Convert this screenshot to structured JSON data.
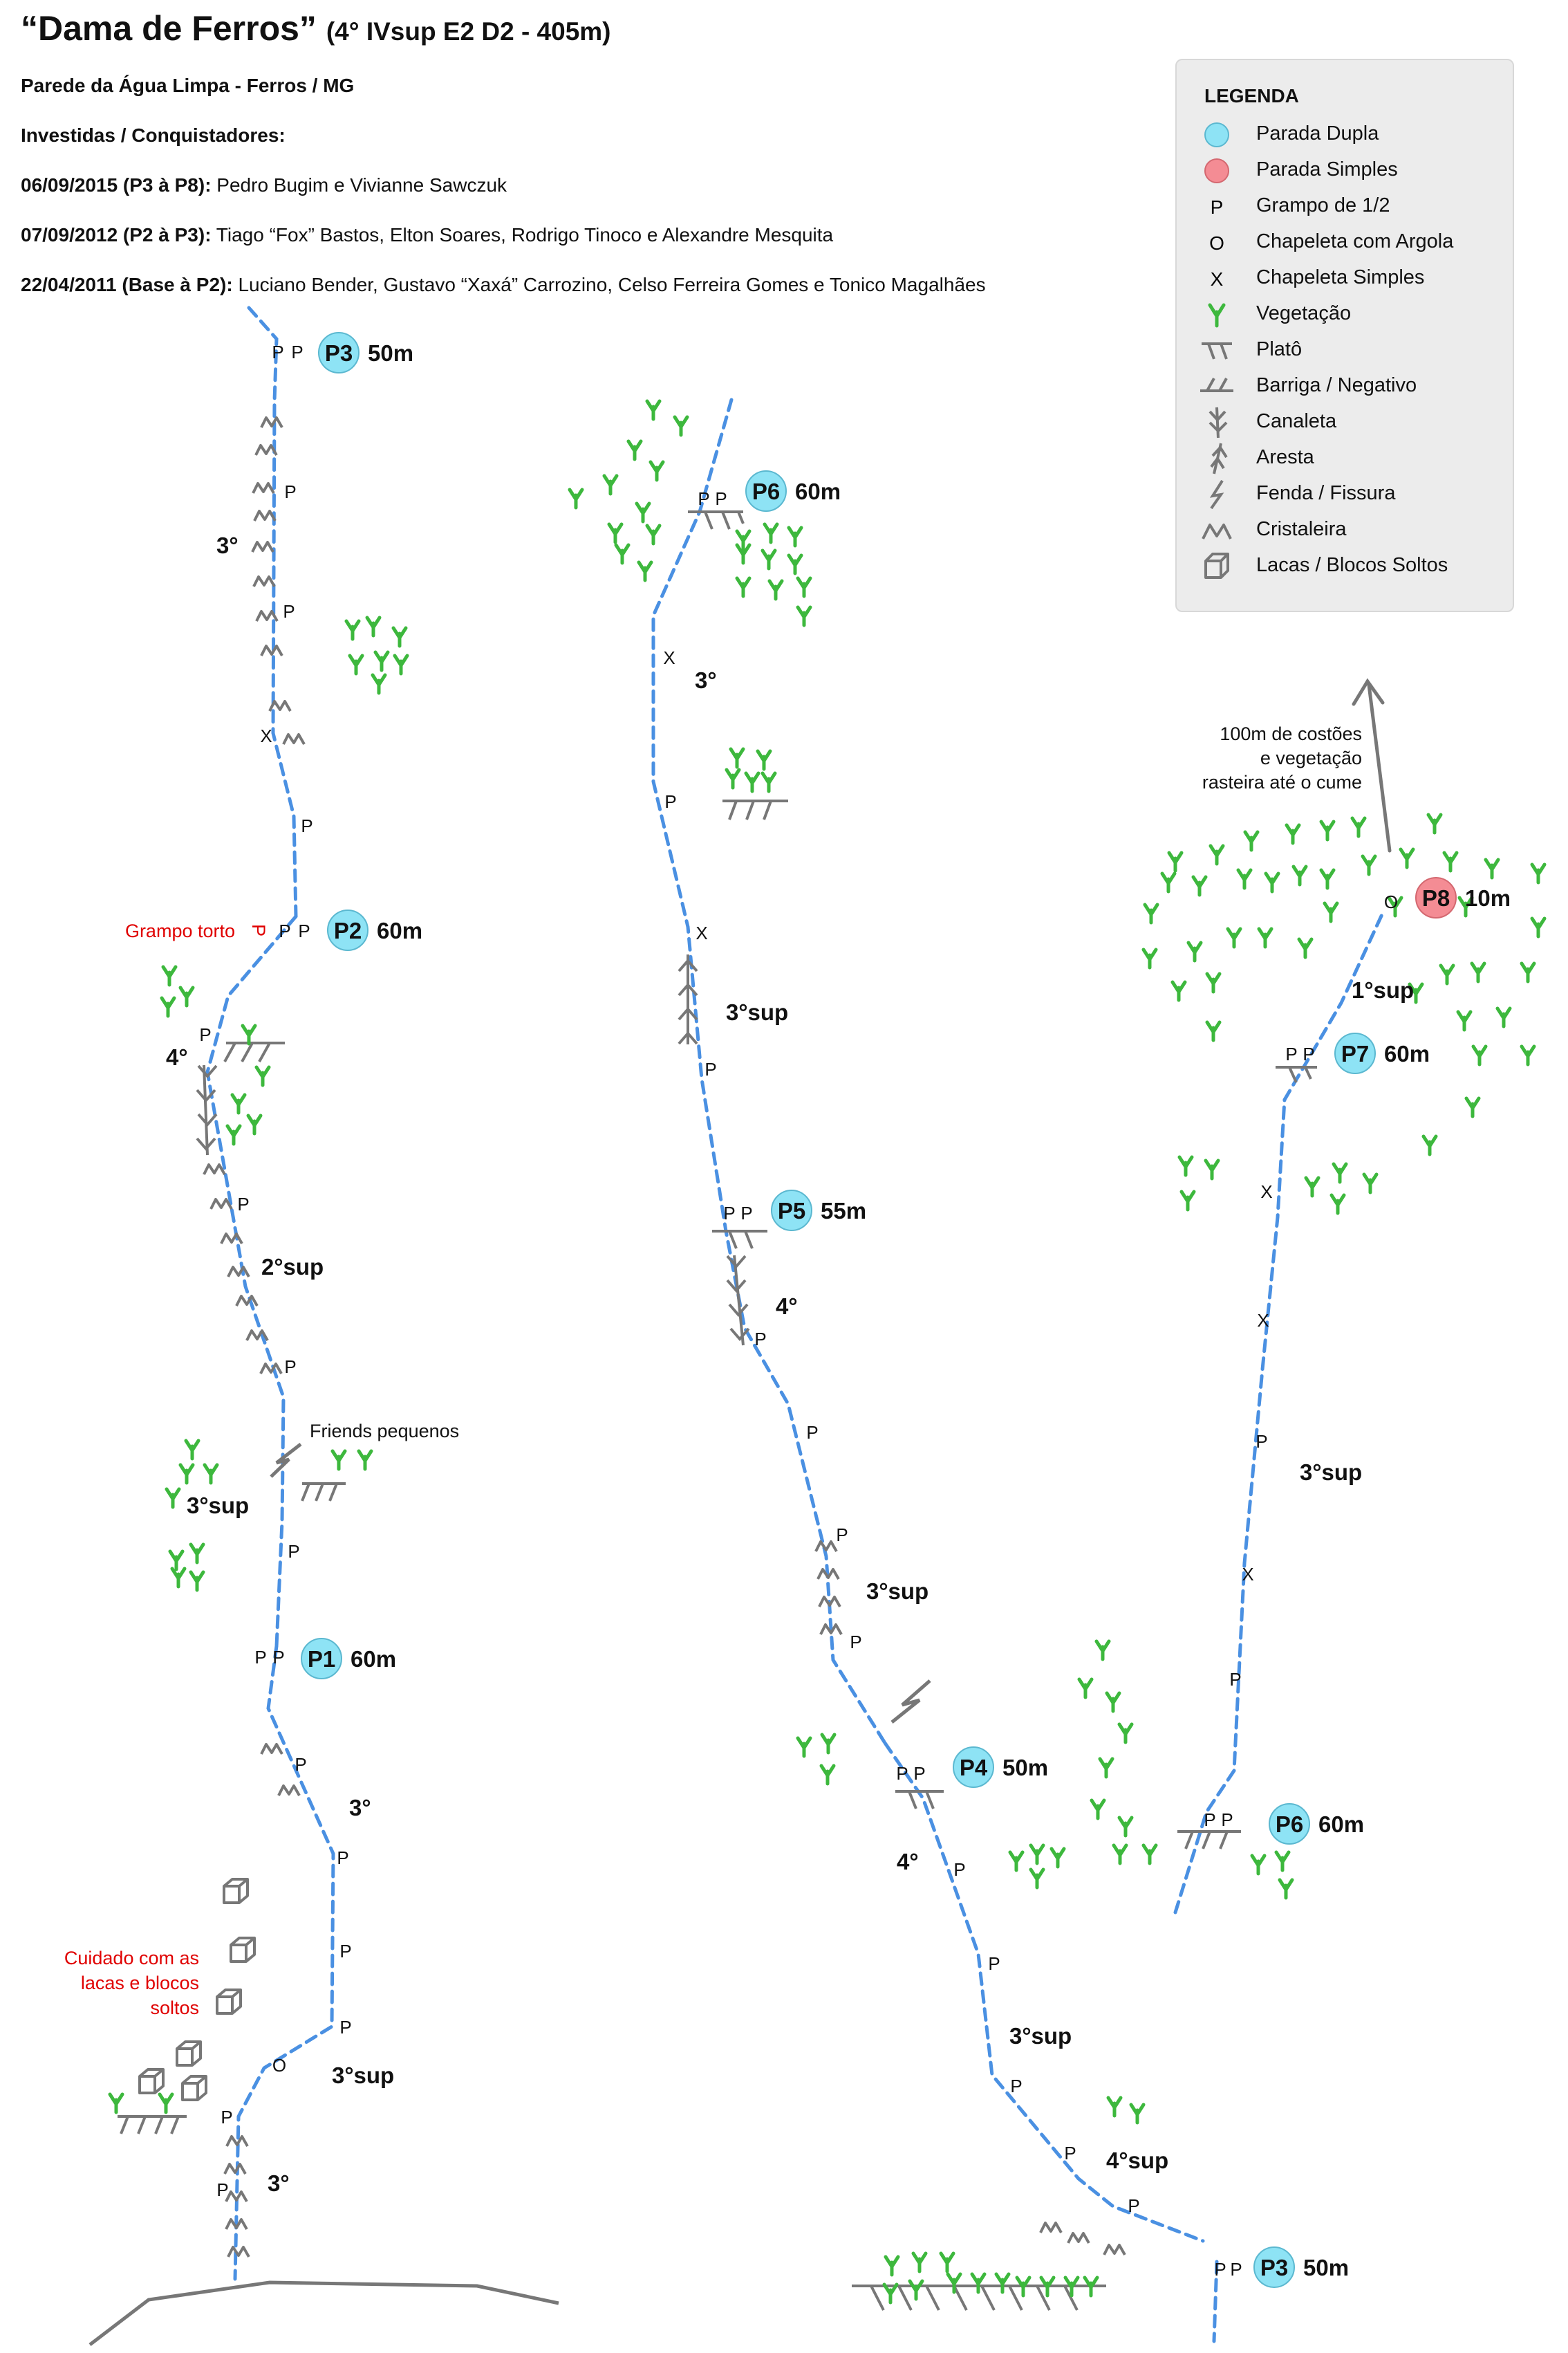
{
  "header": {
    "title": "“Dama de Ferros”",
    "grade": "(4° IVsup E2 D2 - 405m)",
    "location": "Parede da Água Limpa - Ferros / MG",
    "people_heading": "Investidas / Conquistadores:",
    "ascents": [
      {
        "when": "06/09/2015 (P3 à P8):",
        "who": "Pedro Bugim e Vivianne Sawczuk"
      },
      {
        "when": "07/09/2012 (P2 à P3):",
        "who": "Tiago “Fox” Bastos, Elton Soares, Rodrigo Tinoco e Alexandre Mesquita"
      },
      {
        "when": "22/04/2011 (Base à P2):",
        "who": "Luciano Bender, Gustavo “Xaxá” Carrozino, Celso Ferreira Gomes e Tonico Magalhães"
      }
    ]
  },
  "legend": {
    "title": "LEGENDA",
    "items": [
      {
        "icon": "double-belay-icon",
        "label": "Parada Dupla"
      },
      {
        "icon": "single-belay-icon",
        "label": "Parada Simples"
      },
      {
        "icon": "bolt-p-icon",
        "label": "Grampo de 1/2"
      },
      {
        "icon": "ring-bolt-icon",
        "label": "Chapeleta com Argola"
      },
      {
        "icon": "hanger-icon",
        "label": "Chapeleta Simples"
      },
      {
        "icon": "vegetation-icon",
        "label": "Vegetação"
      },
      {
        "icon": "ledge-icon",
        "label": "Platô"
      },
      {
        "icon": "overhang-icon",
        "label": "Barriga / Negativo"
      },
      {
        "icon": "groove-icon",
        "label": "Canaleta"
      },
      {
        "icon": "arete-icon",
        "label": "Aresta"
      },
      {
        "icon": "crack-icon",
        "label": "Fenda / Fissura"
      },
      {
        "icon": "crystals-icon",
        "label": "Cristaleira"
      },
      {
        "icon": "loose-blocks-icon",
        "label": "Lacas / Blocos Soltos"
      }
    ],
    "symbols": {
      "bolt": "P",
      "ring": "O",
      "hanger": "X"
    }
  },
  "colors": {
    "route": "#4a90e2",
    "double_belay": "#8ee3f5",
    "single_belay": "#f48c94",
    "vegetation": "#3db83d",
    "feature": "#777777",
    "warning": "#e00000"
  },
  "belays": [
    {
      "label": "P1",
      "length": "60m"
    },
    {
      "label": "P2",
      "length": "60m"
    },
    {
      "label": "P3",
      "length": "50m"
    },
    {
      "label": "P6",
      "length": "60m"
    },
    {
      "label": "P5",
      "length": "55m"
    },
    {
      "label": "P4",
      "length": "50m"
    },
    {
      "label": "P3",
      "length": "50m"
    },
    {
      "label": "P6",
      "length": "60m"
    },
    {
      "label": "P7",
      "length": "60m"
    },
    {
      "label": "P8",
      "length": "10m"
    }
  ],
  "grades": {
    "g1": "3°",
    "g2": "3°sup",
    "g3": "3°",
    "g4": "3°sup",
    "g5": "2°sup",
    "g6": "4°",
    "g7": "3°",
    "g8": "3°",
    "g9": "3°sup",
    "g10": "4°",
    "g11": "3°sup",
    "g12": "4°",
    "g13": "3°sup",
    "g14": "4°sup",
    "g15": "3°sup",
    "g16": "1°sup"
  },
  "notes": {
    "bent_bolt": "Grampo torto",
    "bent_bolt_mark": "P",
    "loose_warning": [
      "Cuidado com as",
      "lacas e blocos",
      "soltos"
    ],
    "small_friends": "Friends pequenos",
    "summit": [
      "100m de costões",
      "e vegetação",
      "rasteira até o cume"
    ]
  }
}
